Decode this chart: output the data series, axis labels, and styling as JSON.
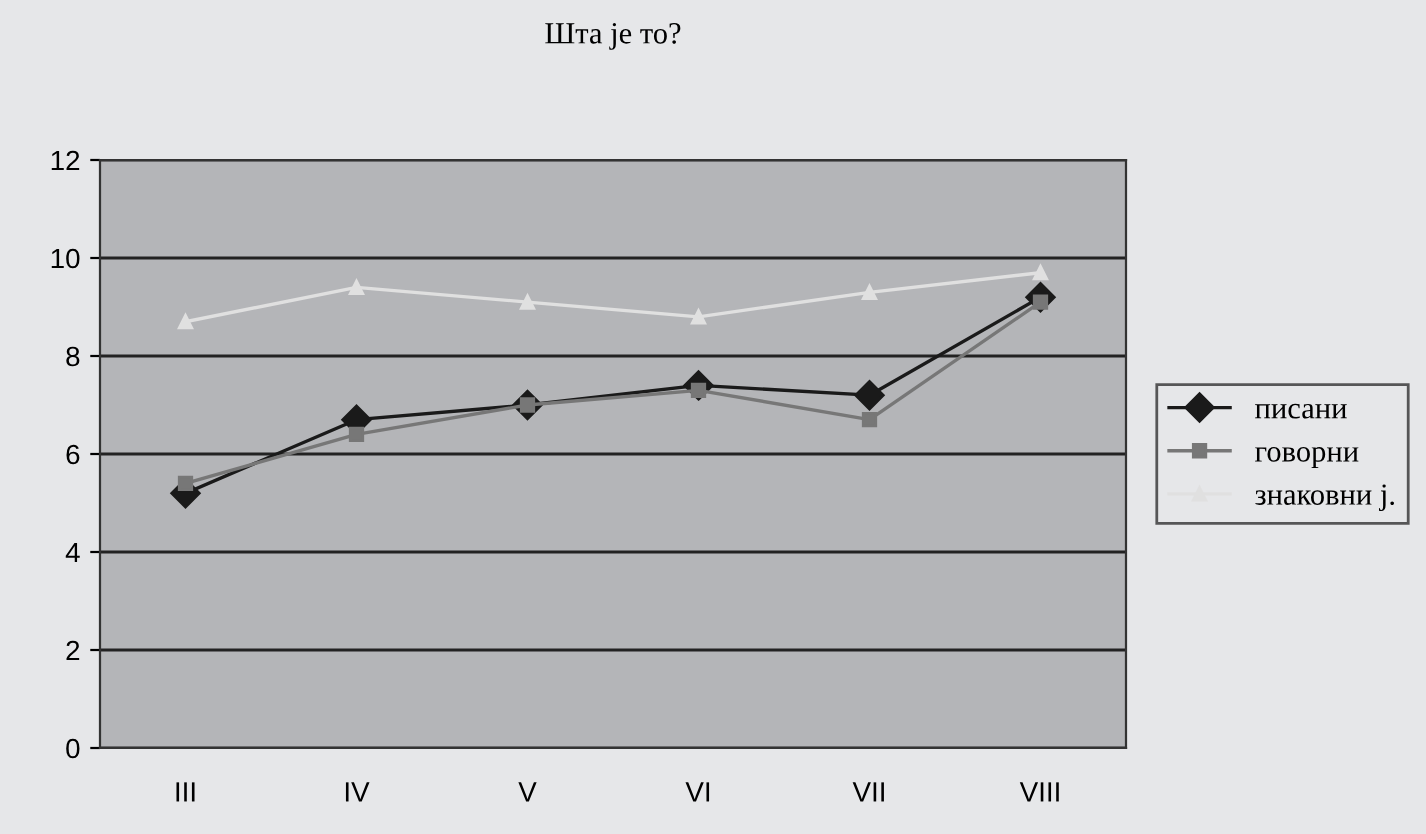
{
  "chart_data": {
    "type": "line",
    "title": "Шта је то?",
    "categories": [
      "III",
      "IV",
      "V",
      "VI",
      "VII",
      "VIII"
    ],
    "series": [
      {
        "name": "писани",
        "color": "#1a1a1a",
        "marker": "diamond",
        "values": [
          5.2,
          6.7,
          7.0,
          7.4,
          7.2,
          9.2
        ]
      },
      {
        "name": "говорни",
        "color": "#777777",
        "marker": "square",
        "values": [
          5.4,
          6.4,
          7.0,
          7.3,
          6.7,
          9.1
        ]
      },
      {
        "name": "знаковни ј.",
        "color": "#e0e0e0",
        "marker": "triangle",
        "values": [
          8.7,
          9.4,
          9.1,
          8.8,
          9.3,
          9.7
        ]
      }
    ],
    "ylim": [
      0,
      12
    ],
    "yticks": [
      0,
      2,
      4,
      6,
      8,
      10,
      12
    ],
    "grid": "y",
    "legend": "right"
  }
}
